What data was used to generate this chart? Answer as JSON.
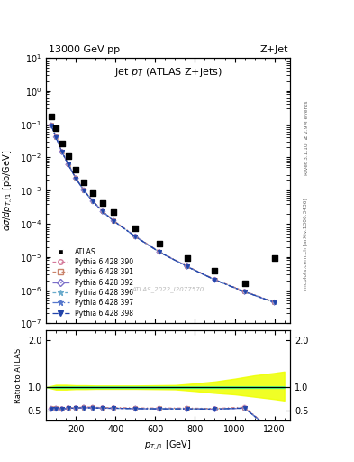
{
  "title_top": "13000 GeV pp",
  "title_right": "Z+Jet",
  "main_title": "Jet p$_T$ (ATLAS Z+jets)",
  "xlabel": "$p_{T,j1}$ [GeV]",
  "ylabel_main": "$d\\sigma/dp_{T,j1}$ [pb/GeV]",
  "ylabel_ratio": "Ratio to ATLAS",
  "right_label_top": "Rivet 3.1.10, ≥ 2.9M events",
  "right_label_bottom": "mcplots.cern.ch [arXiv:1306.3436]",
  "watermark": "ATLAS_2022_I2077570",
  "atlas_data_x": [
    76,
    100,
    130,
    162,
    200,
    240,
    285,
    335,
    390,
    500,
    620,
    760,
    900,
    1050,
    1200
  ],
  "atlas_data_y": [
    0.17,
    0.075,
    0.027,
    0.011,
    0.0042,
    0.0018,
    0.00085,
    0.00042,
    0.00022,
    7.5e-05,
    2.6e-05,
    9.5e-06,
    3.8e-06,
    1.6e-06,
    9e-06
  ],
  "mc_x": [
    76,
    100,
    130,
    162,
    200,
    240,
    285,
    335,
    390,
    500,
    620,
    760,
    900,
    1050,
    1200
  ],
  "mc390_y": [
    0.095,
    0.042,
    0.015,
    0.0063,
    0.0024,
    0.00105,
    0.00049,
    0.00024,
    0.000125,
    4.2e-05,
    1.45e-05,
    5.3e-06,
    2.1e-06,
    9.2e-07,
    4.4e-07
  ],
  "mc391_y": [
    0.094,
    0.042,
    0.0148,
    0.0062,
    0.00238,
    0.00104,
    0.000488,
    0.000238,
    0.000124,
    4.18e-05,
    1.44e-05,
    5.25e-06,
    2.08e-06,
    9.1e-07,
    4.35e-07
  ],
  "mc392_y": [
    0.092,
    0.041,
    0.0145,
    0.0061,
    0.00233,
    0.00102,
    0.000478,
    0.000233,
    0.000122,
    4.1e-05,
    1.41e-05,
    5.15e-06,
    2.04e-06,
    8.9e-07,
    4.25e-07
  ],
  "mc396_y": [
    0.093,
    0.0415,
    0.01465,
    0.00615,
    0.00235,
    0.001028,
    0.000482,
    0.000235,
    0.000123,
    4.12e-05,
    1.42e-05,
    5.18e-06,
    2.06e-06,
    9e-07,
    4.3e-07
  ],
  "mc397_y": [
    0.093,
    0.0413,
    0.01462,
    0.00614,
    0.00234,
    0.001025,
    0.00048,
    0.000234,
    0.000122,
    4.11e-05,
    1.415e-05,
    5.17e-06,
    2.05e-06,
    8.95e-07,
    4.28e-07
  ],
  "mc398_y": [
    0.0928,
    0.0412,
    0.01458,
    0.00612,
    0.00234,
    0.001022,
    0.000479,
    0.000233,
    0.0001215,
    4.1e-05,
    1.413e-05,
    5.16e-06,
    2.048e-06,
    8.93e-07,
    4.27e-07
  ],
  "ratio_x": [
    76,
    100,
    130,
    162,
    200,
    240,
    285,
    335,
    390,
    500,
    620,
    760,
    900,
    1050,
    1200
  ],
  "ratio390": [
    0.56,
    0.56,
    0.55,
    0.57,
    0.57,
    0.58,
    0.58,
    0.57,
    0.57,
    0.56,
    0.56,
    0.56,
    0.55,
    0.58,
    0.049
  ],
  "ratio391": [
    0.553,
    0.56,
    0.548,
    0.564,
    0.567,
    0.578,
    0.574,
    0.567,
    0.565,
    0.557,
    0.554,
    0.553,
    0.548,
    0.569,
    0.048
  ],
  "ratio392": [
    0.541,
    0.547,
    0.537,
    0.555,
    0.555,
    0.567,
    0.562,
    0.555,
    0.555,
    0.547,
    0.542,
    0.542,
    0.537,
    0.556,
    0.047
  ],
  "ratio396": [
    0.547,
    0.553,
    0.543,
    0.559,
    0.56,
    0.571,
    0.567,
    0.56,
    0.559,
    0.55,
    0.547,
    0.545,
    0.542,
    0.562,
    0.048
  ],
  "ratio397": [
    0.547,
    0.551,
    0.542,
    0.558,
    0.558,
    0.57,
    0.565,
    0.558,
    0.557,
    0.549,
    0.545,
    0.544,
    0.54,
    0.56,
    0.0475
  ],
  "ratio398": [
    0.546,
    0.55,
    0.541,
    0.557,
    0.558,
    0.569,
    0.564,
    0.557,
    0.556,
    0.548,
    0.544,
    0.543,
    0.539,
    0.559,
    0.047
  ],
  "band_x": [
    50,
    100,
    150,
    200,
    250,
    300,
    350,
    400,
    450,
    500,
    600,
    700,
    800,
    900,
    1000,
    1100,
    1200,
    1250
  ],
  "band_green_lo": [
    1.0,
    0.985,
    0.985,
    0.985,
    0.985,
    0.985,
    0.985,
    0.985,
    0.985,
    0.985,
    0.985,
    0.985,
    0.985,
    0.985,
    0.985,
    0.985,
    0.985,
    0.985
  ],
  "band_green_hi": [
    1.0,
    1.015,
    1.015,
    1.015,
    1.015,
    1.015,
    1.015,
    1.015,
    1.015,
    1.015,
    1.015,
    1.015,
    1.015,
    1.015,
    1.015,
    1.015,
    1.015,
    1.015
  ],
  "band_yellow_lo": [
    1.0,
    0.95,
    0.95,
    0.96,
    0.96,
    0.965,
    0.965,
    0.965,
    0.965,
    0.965,
    0.96,
    0.955,
    0.92,
    0.88,
    0.85,
    0.8,
    0.75,
    0.72
  ],
  "band_yellow_hi": [
    1.0,
    1.05,
    1.05,
    1.04,
    1.04,
    1.035,
    1.035,
    1.035,
    1.035,
    1.035,
    1.04,
    1.045,
    1.08,
    1.12,
    1.18,
    1.25,
    1.3,
    1.33
  ],
  "color_390": "#d4799a",
  "color_391": "#c9826a",
  "color_392": "#7b6fc9",
  "color_396": "#6aabcc",
  "color_397": "#5577cc",
  "color_398": "#2244aa",
  "atlas_color": "#000000",
  "ylim_main": [
    1e-07,
    10
  ],
  "ylim_ratio": [
    0.3,
    2.2
  ],
  "xlim": [
    50,
    1280
  ],
  "ratio_yticks": [
    0.5,
    1.0,
    2.0
  ]
}
